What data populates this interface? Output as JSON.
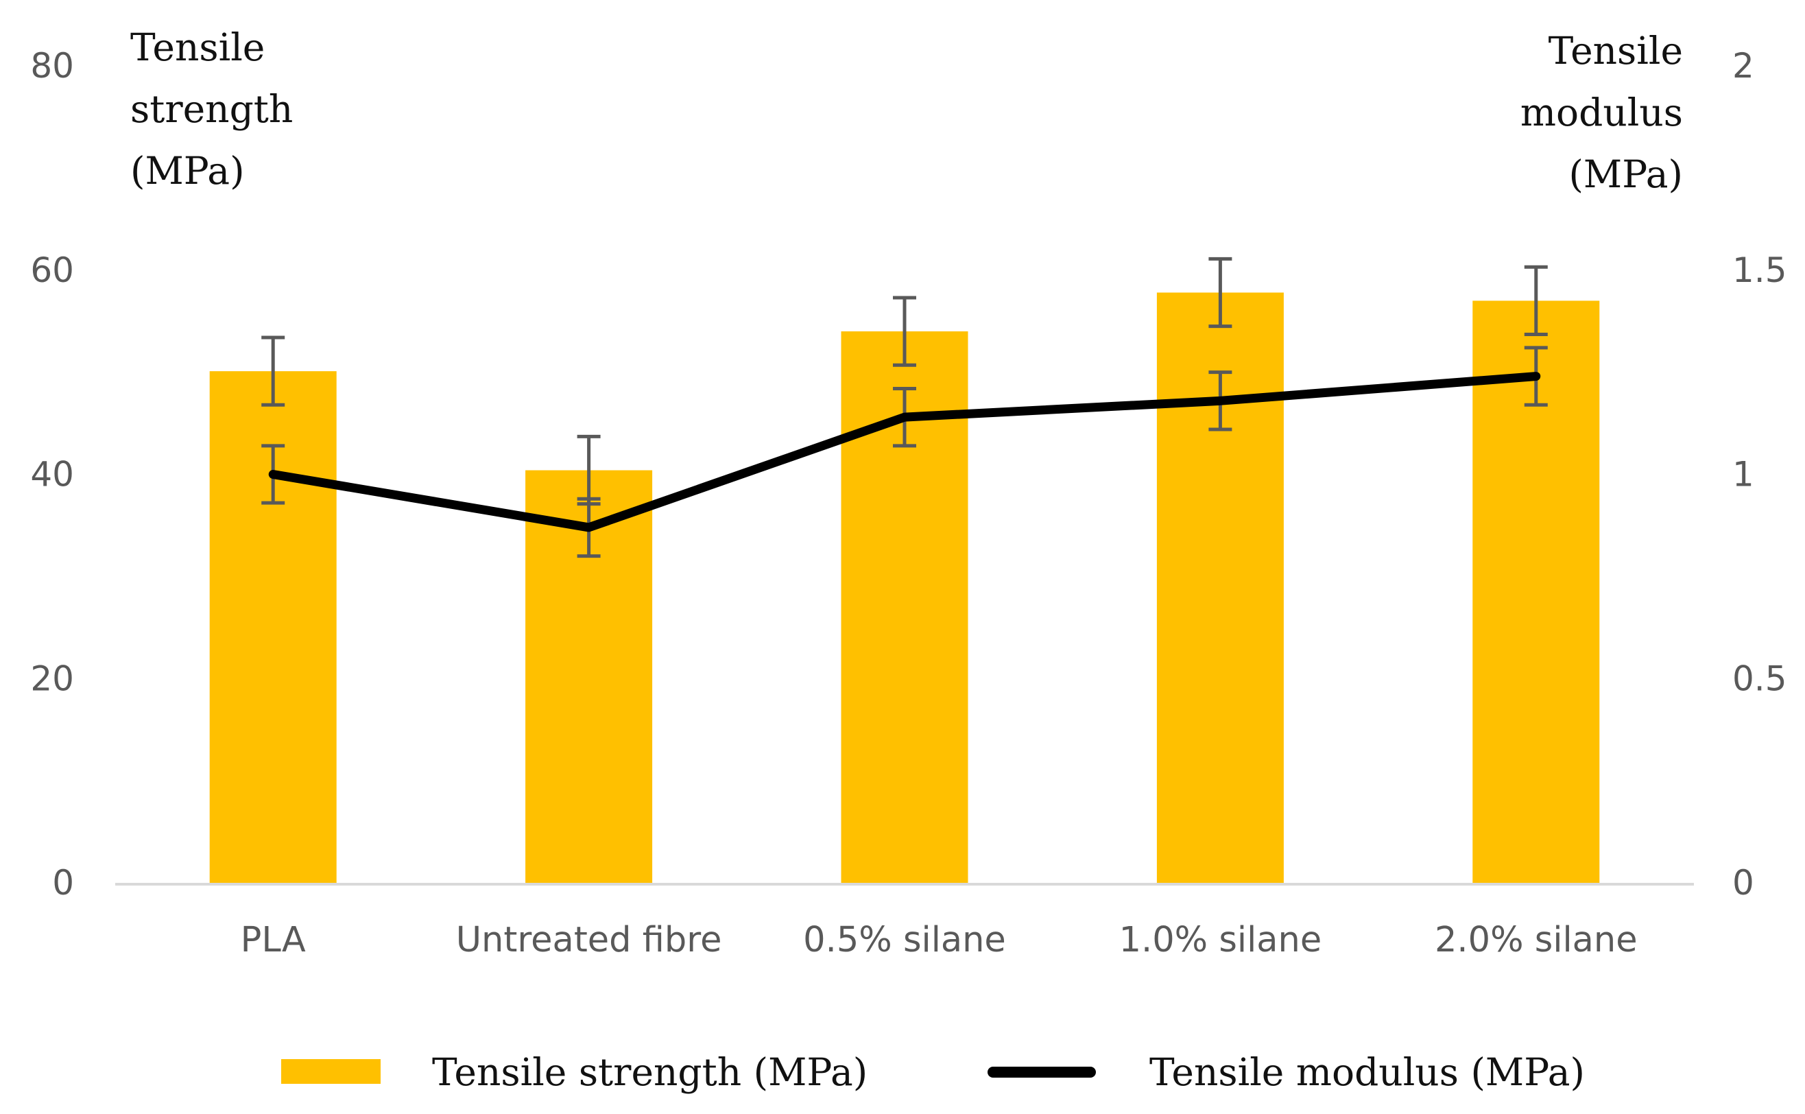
{
  "chart_data": {
    "type": "bar+line",
    "categories": [
      "PLA",
      "Untreated fibre",
      "0.5% silane",
      "1.0% silane",
      "2.0% silane"
    ],
    "left_axis": {
      "title_lines": [
        "Tensile",
        "strength",
        "(MPa)"
      ],
      "ticks": [
        "0",
        "20",
        "40",
        "60",
        "80"
      ],
      "ylim": [
        0,
        80
      ]
    },
    "right_axis": {
      "title_lines": [
        "Tensile",
        "modulus",
        "(MPa)"
      ],
      "ticks": [
        "0",
        "0.5",
        "1",
        "1.5",
        "2"
      ],
      "ylim": [
        0,
        2
      ]
    },
    "series": [
      {
        "name": "Tensile strength (MPa)",
        "kind": "bar",
        "axis": "left",
        "color": "#FFC000",
        "values": [
          50.1,
          40.4,
          54.0,
          57.8,
          57.0
        ],
        "errors": [
          3.3,
          3.3,
          3.3,
          3.3,
          3.3
        ]
      },
      {
        "name": "Tensile modulus (MPa)",
        "kind": "line",
        "axis": "right",
        "color": "#000000",
        "values": [
          1.0,
          0.87,
          1.14,
          1.18,
          1.24
        ],
        "errors": [
          0.07,
          0.07,
          0.07,
          0.07,
          0.07
        ]
      }
    ],
    "legend": {
      "position": "bottom"
    },
    "grid": false
  }
}
